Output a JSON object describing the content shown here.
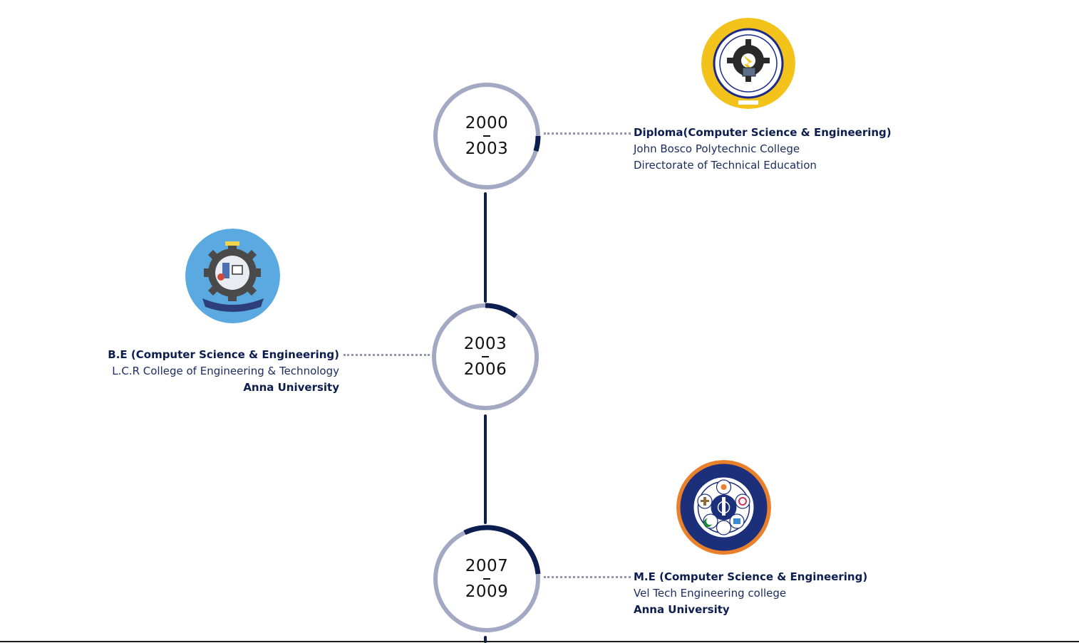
{
  "timeline": {
    "entries": [
      {
        "years_start": "2000",
        "years_end": "2003",
        "degree": "Diploma(Computer Science & Engineering)",
        "institution": "John Bosco Polytechnic College",
        "board": "Directorate of Technical Education",
        "logo_icon": "john-bosco-polytechnic-logo",
        "logo_color": "#f3c21b",
        "arc_progress": 0.12
      },
      {
        "years_start": "2003",
        "years_end": "2006",
        "degree": "B.E (Computer Science & Engineering)",
        "institution": "L.C.R College of Engineering & Technology",
        "board": "Anna University",
        "logo_icon": "lcr-college-logo",
        "logo_color": "#5aa9e0",
        "arc_progress": 0.1
      },
      {
        "years_start": "2007",
        "years_end": "2009",
        "degree": "M.E (Computer Science & Engineering)",
        "institution": "Vel Tech Engineering college",
        "board": "Anna University",
        "logo_icon": "vel-tech-logo",
        "logo_color": "#e9802b",
        "arc_progress": 0.3
      }
    ]
  },
  "colors": {
    "navy": "#0c1d4f",
    "ring_grey": "#a3a9c2",
    "connector_grey": "#8f96ad"
  }
}
